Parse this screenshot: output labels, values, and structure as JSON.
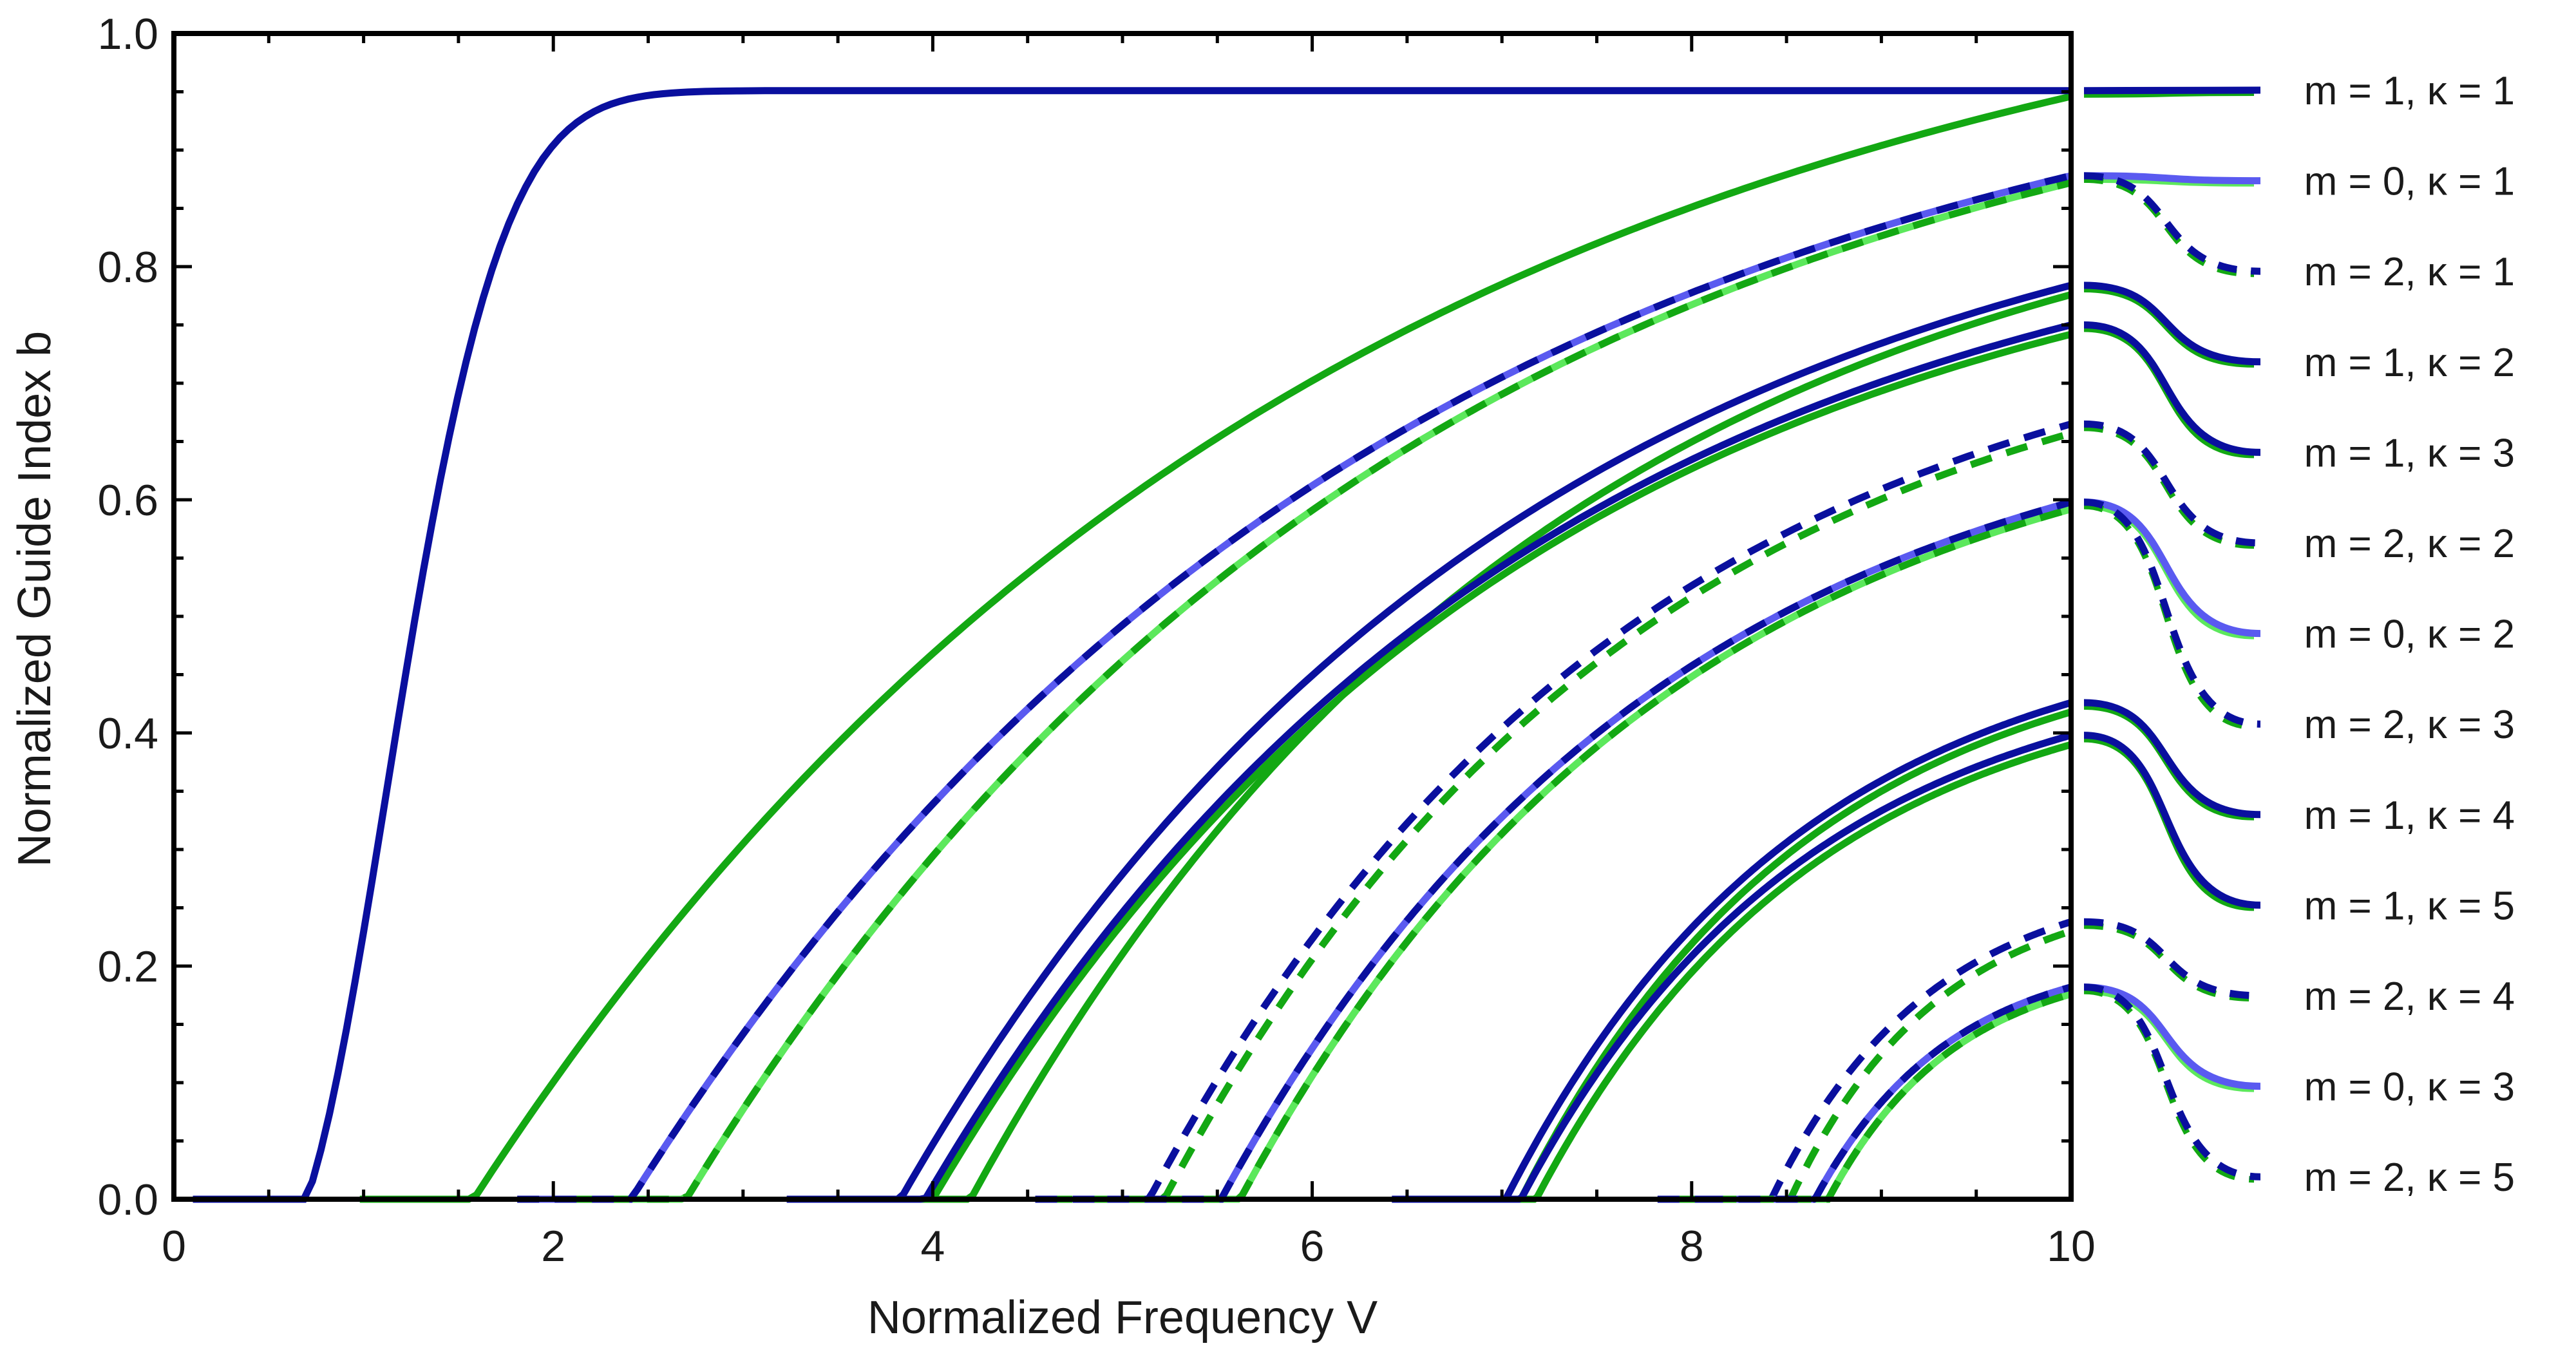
{
  "chart_data": {
    "type": "line",
    "title": "",
    "xlabel": "Normalized Frequency V",
    "ylabel": "Normalized Guide Index b",
    "xlim": [
      0,
      10
    ],
    "ylim": [
      0,
      1
    ],
    "xticks": [
      "0",
      "2",
      "4",
      "6",
      "8",
      "10"
    ],
    "yticks": [
      "0.0",
      "0.2",
      "0.4",
      "0.6",
      "0.8",
      "1.0"
    ],
    "colors": {
      "dark_blue": "#0a0f9e",
      "light_blue": "#5a5af0",
      "green": "#13a813",
      "light_green": "#5ce85c"
    },
    "series": [
      {
        "name": "m = 1, κ = 1",
        "m": 1,
        "kappa": 1,
        "cutoff_blue": 0.7,
        "cutoff_green": 1.58,
        "b10_blue": 0.951,
        "b10_green": 0.946,
        "legend_end": 0.951,
        "style": "solid",
        "mode": "primary"
      },
      {
        "name": "m = 0, κ = 1",
        "m": 0,
        "kappa": 1,
        "cutoff_blue": 2.41,
        "cutoff_green": 2.7,
        "b10_blue": 0.878,
        "b10_green": 0.872,
        "legend_end": 0.872,
        "style": "solid",
        "mode": "light"
      },
      {
        "name": "m = 2, κ = 1",
        "m": 2,
        "kappa": 1,
        "cutoff_blue": 2.41,
        "cutoff_green": 2.7,
        "b10_blue": 0.878,
        "b10_green": 0.872,
        "legend_end": 0.795,
        "style": "dashed",
        "mode": "primary"
      },
      {
        "name": "m = 1, κ = 2",
        "m": 1,
        "kappa": 2,
        "cutoff_blue": 3.83,
        "cutoff_green": 4.2,
        "b10_blue": 0.784,
        "b10_green": 0.776,
        "legend_end": 0.72,
        "style": "solid",
        "mode": "primary"
      },
      {
        "name": "m = 1, κ = 3",
        "m": 1,
        "kappa": 3,
        "cutoff_blue": 3.96,
        "cutoff_green": 4.0,
        "b10_blue": 0.75,
        "b10_green": 0.742,
        "legend_end": 0.642,
        "style": "solid",
        "mode": "primary"
      },
      {
        "name": "m = 2, κ = 2",
        "m": 2,
        "kappa": 2,
        "cutoff_blue": 5.14,
        "cutoff_green": 5.22,
        "b10_blue": 0.665,
        "b10_green": 0.657,
        "legend_end": 0.565,
        "style": "dashed",
        "mode": "primary"
      },
      {
        "name": "m = 0, κ = 2",
        "m": 0,
        "kappa": 2,
        "cutoff_blue": 5.52,
        "cutoff_green": 5.62,
        "b10_blue": 0.598,
        "b10_green": 0.592,
        "legend_end": 0.488,
        "style": "solid",
        "mode": "light"
      },
      {
        "name": "m = 2, κ = 3",
        "m": 2,
        "kappa": 3,
        "cutoff_blue": 5.52,
        "cutoff_green": 5.62,
        "b10_blue": 0.598,
        "b10_green": 0.592,
        "legend_end": 0.41,
        "style": "dashed",
        "mode": "primary"
      },
      {
        "name": "m = 1, κ = 4",
        "m": 1,
        "kappa": 4,
        "cutoff_blue": 7.02,
        "cutoff_green": 7.1,
        "b10_blue": 0.426,
        "b10_green": 0.418,
        "legend_end": 0.335,
        "style": "solid",
        "mode": "primary"
      },
      {
        "name": "m = 1, κ = 5",
        "m": 1,
        "kappa": 5,
        "cutoff_blue": 7.1,
        "cutoff_green": 7.18,
        "b10_blue": 0.398,
        "b10_green": 0.39,
        "legend_end": 0.258,
        "style": "solid",
        "mode": "primary"
      },
      {
        "name": "m = 2, κ = 4",
        "m": 2,
        "kappa": 4,
        "cutoff_blue": 8.42,
        "cutoff_green": 8.52,
        "b10_blue": 0.238,
        "b10_green": 0.23,
        "legend_end": 0.185,
        "style": "dashed",
        "mode": "primary"
      },
      {
        "name": "m = 0, κ = 3",
        "m": 0,
        "kappa": 3,
        "cutoff_blue": 8.65,
        "cutoff_green": 8.72,
        "b10_blue": 0.182,
        "b10_green": 0.176,
        "legend_end": 0.105,
        "style": "solid",
        "mode": "light"
      },
      {
        "name": "m = 2, κ = 5",
        "m": 2,
        "kappa": 5,
        "cutoff_blue": 8.65,
        "cutoff_green": 8.72,
        "b10_blue": 0.182,
        "b10_green": 0.176,
        "legend_end": 0.03,
        "style": "dashed",
        "mode": "primary"
      }
    ]
  }
}
